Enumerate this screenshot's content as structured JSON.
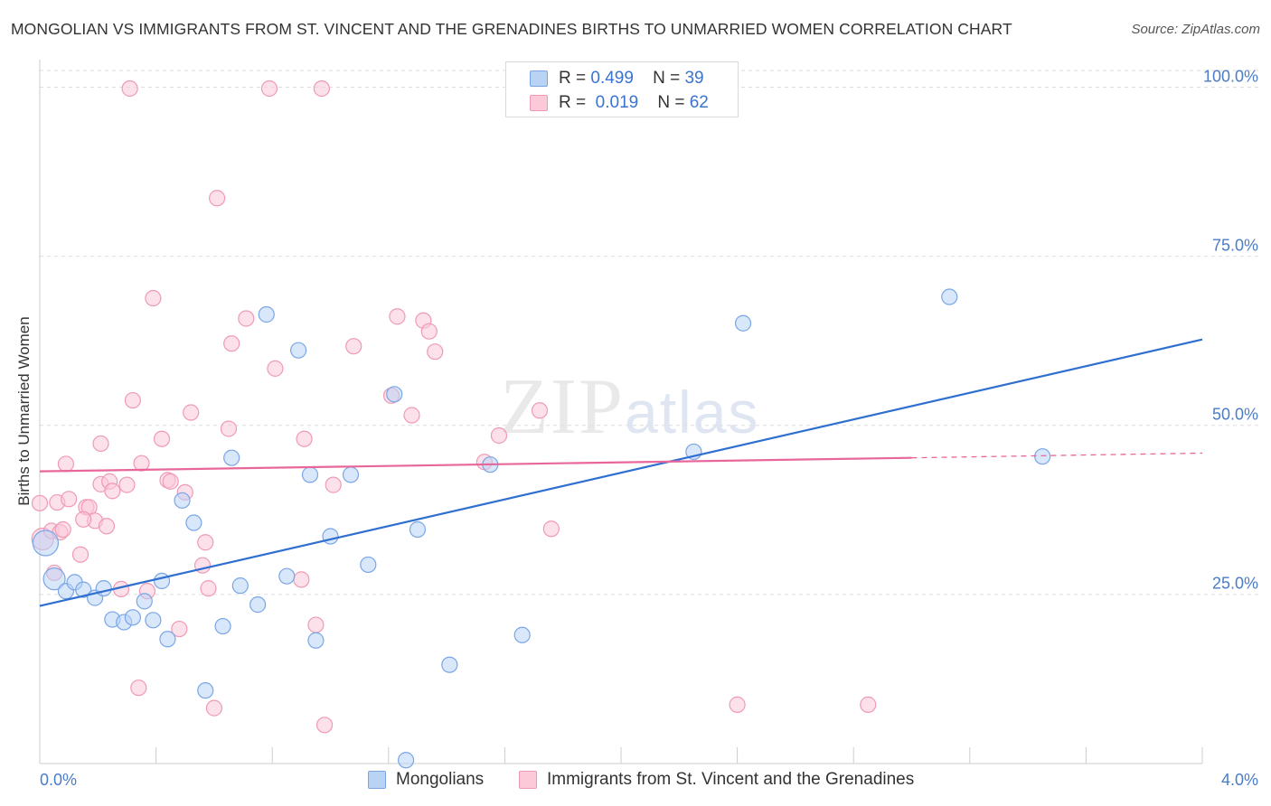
{
  "header": {
    "title": "MONGOLIAN VS IMMIGRANTS FROM ST. VINCENT AND THE GRENADINES BIRTHS TO UNMARRIED WOMEN CORRELATION CHART",
    "source": "Source: ZipAtlas.com"
  },
  "watermark": {
    "zip": "ZIP",
    "atlas": "atlas"
  },
  "legend": {
    "r_label": "R =",
    "n_label": "N =",
    "blue": {
      "r": "0.499",
      "n": "39"
    },
    "pink": {
      "r": "0.019",
      "n": "62"
    }
  },
  "bottom_legend": {
    "blue_label": "Mongolians",
    "pink_label": "Immigrants from St. Vincent and the Grenadines"
  },
  "colors": {
    "blue_fill": "#b9d3f5",
    "blue_stroke": "#7aa6e6",
    "blue_line": "#2f6fd0",
    "pink_fill": "#fbc9d8",
    "pink_stroke": "#ef9ab5",
    "pink_line": "#e8679a",
    "grid": "#dddddd",
    "tick_text": "#4a7cc7"
  },
  "chart_data": {
    "type": "scatter",
    "title": "MONGOLIAN VS IMMIGRANTS FROM ST. VINCENT AND THE GRENADINES BIRTHS TO UNMARRIED WOMEN CORRELATION CHART",
    "xlabel": "",
    "ylabel": "Births to Unmarried Women",
    "xlim": [
      0,
      4.0
    ],
    "ylim": [
      0,
      100
    ],
    "x_tick_labels": [
      {
        "value": 0,
        "label": "0.0%"
      },
      {
        "value": 4.0,
        "label": "4.0%"
      }
    ],
    "y_tick_labels": [
      {
        "value": 25,
        "label": "25.0%"
      },
      {
        "value": 50,
        "label": "50.0%"
      },
      {
        "value": 75,
        "label": "75.0%"
      },
      {
        "value": 100,
        "label": "100.0%"
      }
    ],
    "grid": true,
    "series": [
      {
        "name": "Mongolians",
        "color": "blue",
        "points": [
          {
            "x": 0.02,
            "y": 32.6,
            "size": 14
          },
          {
            "x": 0.05,
            "y": 27.3,
            "size": 12
          },
          {
            "x": 0.09,
            "y": 25.5
          },
          {
            "x": 0.12,
            "y": 26.8
          },
          {
            "x": 0.15,
            "y": 25.7
          },
          {
            "x": 0.19,
            "y": 24.5
          },
          {
            "x": 0.22,
            "y": 25.9
          },
          {
            "x": 0.25,
            "y": 21.3
          },
          {
            "x": 0.29,
            "y": 20.9
          },
          {
            "x": 0.32,
            "y": 21.6
          },
          {
            "x": 0.36,
            "y": 24.0
          },
          {
            "x": 0.39,
            "y": 21.2
          },
          {
            "x": 0.42,
            "y": 27.0
          },
          {
            "x": 0.44,
            "y": 18.4
          },
          {
            "x": 0.49,
            "y": 38.9
          },
          {
            "x": 0.53,
            "y": 35.6
          },
          {
            "x": 0.57,
            "y": 10.8
          },
          {
            "x": 0.63,
            "y": 20.3
          },
          {
            "x": 0.66,
            "y": 45.2
          },
          {
            "x": 0.69,
            "y": 26.3
          },
          {
            "x": 0.75,
            "y": 23.5
          },
          {
            "x": 0.78,
            "y": 66.4
          },
          {
            "x": 0.85,
            "y": 27.7
          },
          {
            "x": 0.89,
            "y": 61.1
          },
          {
            "x": 0.93,
            "y": 42.7
          },
          {
            "x": 0.95,
            "y": 18.2
          },
          {
            "x": 1.0,
            "y": 33.6
          },
          {
            "x": 1.07,
            "y": 42.7
          },
          {
            "x": 1.13,
            "y": 29.4
          },
          {
            "x": 1.22,
            "y": 54.6
          },
          {
            "x": 1.26,
            "y": 0.5
          },
          {
            "x": 1.3,
            "y": 34.6
          },
          {
            "x": 1.41,
            "y": 14.6
          },
          {
            "x": 1.55,
            "y": 44.2
          },
          {
            "x": 1.66,
            "y": 19.0
          },
          {
            "x": 2.25,
            "y": 46.1
          },
          {
            "x": 2.42,
            "y": 65.1
          },
          {
            "x": 3.13,
            "y": 69.0
          },
          {
            "x": 3.45,
            "y": 45.4
          }
        ]
      },
      {
        "name": "Immigrants from St. Vincent and the Grenadines",
        "color": "pink",
        "points": [
          {
            "x": 0.0,
            "y": 38.5
          },
          {
            "x": 0.01,
            "y": 33.2,
            "size": 12
          },
          {
            "x": 0.04,
            "y": 34.4
          },
          {
            "x": 0.05,
            "y": 28.2
          },
          {
            "x": 0.06,
            "y": 38.6
          },
          {
            "x": 0.07,
            "y": 34.2
          },
          {
            "x": 0.08,
            "y": 34.6
          },
          {
            "x": 0.09,
            "y": 44.3
          },
          {
            "x": 0.1,
            "y": 39.1
          },
          {
            "x": 0.14,
            "y": 30.9
          },
          {
            "x": 0.16,
            "y": 37.9
          },
          {
            "x": 0.17,
            "y": 37.9
          },
          {
            "x": 0.19,
            "y": 35.9
          },
          {
            "x": 0.21,
            "y": 47.3
          },
          {
            "x": 0.21,
            "y": 41.3
          },
          {
            "x": 0.23,
            "y": 35.1
          },
          {
            "x": 0.24,
            "y": 41.7
          },
          {
            "x": 0.25,
            "y": 40.3
          },
          {
            "x": 0.28,
            "y": 25.8
          },
          {
            "x": 0.3,
            "y": 41.2
          },
          {
            "x": 0.31,
            "y": 99.8
          },
          {
            "x": 0.32,
            "y": 53.7
          },
          {
            "x": 0.34,
            "y": 11.2
          },
          {
            "x": 0.35,
            "y": 44.4
          },
          {
            "x": 0.37,
            "y": 25.5
          },
          {
            "x": 0.39,
            "y": 68.8
          },
          {
            "x": 0.42,
            "y": 48.0
          },
          {
            "x": 0.44,
            "y": 41.9
          },
          {
            "x": 0.45,
            "y": 41.7
          },
          {
            "x": 0.48,
            "y": 19.9
          },
          {
            "x": 0.5,
            "y": 40.1
          },
          {
            "x": 0.52,
            "y": 51.9
          },
          {
            "x": 0.56,
            "y": 29.3
          },
          {
            "x": 0.57,
            "y": 32.7
          },
          {
            "x": 0.58,
            "y": 25.9
          },
          {
            "x": 0.6,
            "y": 8.2
          },
          {
            "x": 0.61,
            "y": 83.6
          },
          {
            "x": 0.65,
            "y": 49.5
          },
          {
            "x": 0.66,
            "y": 62.1
          },
          {
            "x": 0.71,
            "y": 65.8
          },
          {
            "x": 0.79,
            "y": 99.8
          },
          {
            "x": 0.81,
            "y": 58.4
          },
          {
            "x": 0.9,
            "y": 27.2
          },
          {
            "x": 0.91,
            "y": 48.0
          },
          {
            "x": 0.95,
            "y": 20.5
          },
          {
            "x": 0.97,
            "y": 99.8
          },
          {
            "x": 0.98,
            "y": 5.7
          },
          {
            "x": 1.01,
            "y": 41.2
          },
          {
            "x": 1.08,
            "y": 61.7
          },
          {
            "x": 1.21,
            "y": 54.4
          },
          {
            "x": 1.23,
            "y": 66.1
          },
          {
            "x": 1.28,
            "y": 51.5
          },
          {
            "x": 1.32,
            "y": 65.5
          },
          {
            "x": 1.34,
            "y": 63.9
          },
          {
            "x": 1.36,
            "y": 60.9
          },
          {
            "x": 1.53,
            "y": 44.6
          },
          {
            "x": 1.58,
            "y": 48.5
          },
          {
            "x": 1.72,
            "y": 52.2
          },
          {
            "x": 1.76,
            "y": 34.7
          },
          {
            "x": 2.4,
            "y": 8.7
          },
          {
            "x": 2.85,
            "y": 8.7
          },
          {
            "x": 0.15,
            "y": 36.1
          }
        ]
      }
    ],
    "trend_lines": [
      {
        "series": "Mongolians",
        "x1": 0.0,
        "y1": 23.3,
        "x2": 4.0,
        "y2": 62.7,
        "style": "solid"
      },
      {
        "series": "Immigrants from St. Vincent and the Grenadines",
        "x1": 0.0,
        "y1": 43.2,
        "x2": 3.0,
        "y2": 45.2,
        "style": "solid"
      },
      {
        "series": "Immigrants from St. Vincent and the Grenadines",
        "x1": 3.0,
        "y1": 45.2,
        "x2": 4.0,
        "y2": 45.9,
        "style": "dashed"
      }
    ],
    "legend": {
      "placement": "top-center"
    }
  }
}
